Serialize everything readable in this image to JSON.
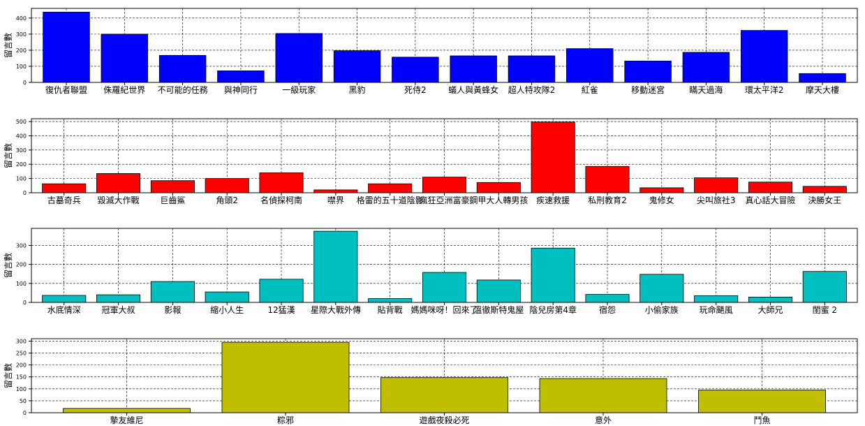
{
  "chart_data": [
    {
      "type": "bar",
      "color": "#0000ff",
      "ylabel": "留言數",
      "ylim": [
        0,
        460
      ],
      "yticks": [
        0,
        100,
        200,
        300,
        400
      ],
      "grid": true,
      "categories": [
        "復仇者聯盟",
        "侏羅紀世界",
        "不可能的任務",
        "與神同行",
        "一級玩家",
        "黑豹",
        "死侍2",
        "蟻人與黃蜂女",
        "超人特攻隊2",
        "紅雀",
        "移動迷宮",
        "瞞天過海",
        "環太平洋2",
        "摩天大樓"
      ],
      "values": [
        437,
        300,
        168,
        72,
        304,
        197,
        157,
        165,
        165,
        210,
        133,
        187,
        323,
        55
      ]
    },
    {
      "type": "bar",
      "color": "#ff0000",
      "ylabel": "留言數",
      "ylim": [
        0,
        520
      ],
      "yticks": [
        0,
        100,
        200,
        300,
        400,
        500
      ],
      "grid": true,
      "categories": [
        "古墓奇兵",
        "毀滅大作戰",
        "巨齒鯊",
        "角頭2",
        "名偵探柯南",
        "噤界",
        "格雷的五十道陰影",
        "瘋狂亞洲富豪",
        "鋼甲大人轉男孩",
        "疾速救援",
        "私刑教育2",
        "鬼修女",
        "尖叫旅社3",
        "真心話大冒險",
        "決勝女王"
      ],
      "values": [
        63,
        135,
        85,
        100,
        140,
        20,
        63,
        110,
        72,
        497,
        185,
        35,
        105,
        75,
        45
      ]
    },
    {
      "type": "bar",
      "color": "#00bfbf",
      "ylabel": "留言數",
      "ylim": [
        0,
        390
      ],
      "yticks": [
        0,
        100,
        200,
        300
      ],
      "grid": true,
      "categories": [
        "水底情深",
        "冠軍大叔",
        "影報",
        "縮小人生",
        "12猛漢",
        "星際大戰外傳",
        "貼背戰",
        "媽媽咪呀！回來了",
        "溫徹斯特鬼屋",
        "陰兒房第4章",
        "宿怨",
        "小偷家族",
        "玩命颶風",
        "大師兄",
        "閨蜜 2"
      ],
      "values": [
        37,
        40,
        110,
        55,
        122,
        375,
        20,
        158,
        118,
        286,
        42,
        148,
        35,
        28,
        163
      ]
    },
    {
      "type": "bar",
      "color": "#bfbf00",
      "ylabel": "留言數",
      "ylim": [
        0,
        310
      ],
      "yticks": [
        0,
        50,
        100,
        150,
        200,
        250,
        300
      ],
      "grid": true,
      "categories": [
        "摯友維尼",
        "粽邪",
        "遊戲夜殺必死",
        "意外",
        "鬥魚"
      ],
      "values": [
        18,
        295,
        147,
        143,
        95
      ]
    }
  ]
}
